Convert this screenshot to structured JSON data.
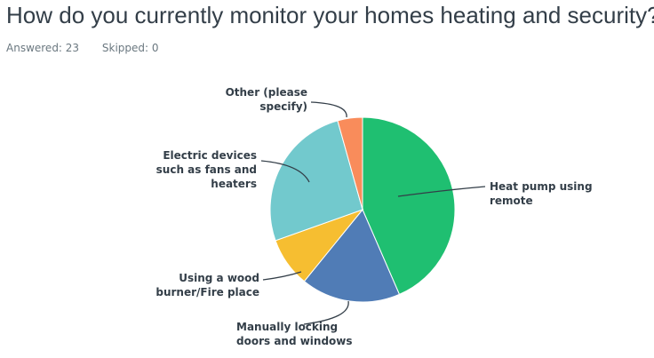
{
  "question": {
    "title": "How do you currently monitor your homes heating and security?",
    "answered_label": "Answered: 23",
    "skipped_label": "Skipped: 0"
  },
  "chart_data": {
    "type": "pie",
    "title": "How do you currently monitor your homes heating and security?",
    "slices": [
      {
        "label": "Heat pump using remote",
        "lines": [
          "Heat pump using",
          "remote"
        ],
        "value": 43.48,
        "color": "#1fbf71"
      },
      {
        "label": "Manually locking doors and windows",
        "lines": [
          "Manually locking",
          "doors and windows"
        ],
        "value": 17.39,
        "color": "#507cb6"
      },
      {
        "label": "Using a wood burner/Fire place",
        "lines": [
          "Using a wood",
          "burner/Fire place"
        ],
        "value": 8.7,
        "color": "#f6be31"
      },
      {
        "label": "Electric devices such as fans and heaters",
        "lines": [
          "Electric devices",
          "such as fans and",
          "heaters"
        ],
        "value": 26.09,
        "color": "#72c9cd"
      },
      {
        "label": "Other (please specify)",
        "lines": [
          "Other (please",
          "specify)"
        ],
        "value": 4.35,
        "color": "#f98c5b"
      }
    ]
  }
}
